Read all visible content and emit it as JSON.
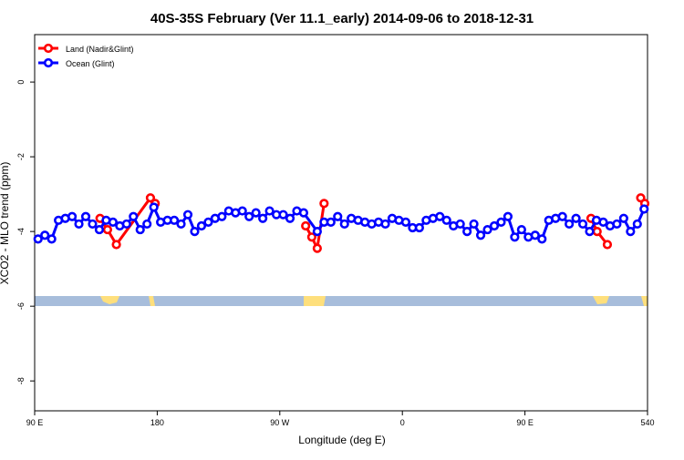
{
  "chart_data": {
    "type": "line",
    "title": "40S-35S February (Ver 11.1_early)   2014-09-06 to 2018-12-31",
    "xlabel": "Longitude (deg E)",
    "ylabel": "XCO2 - MLO trend (ppm)",
    "xlim": [
      90,
      540
    ],
    "ylim": [
      -8.8,
      1.27
    ],
    "xticks": [
      {
        "value": 90,
        "label": "90 E"
      },
      180,
      {
        "value": 270,
        "label": "90 W"
      },
      {
        "value": 360,
        "label": "0"
      },
      {
        "value": 450,
        "label": "90 E"
      },
      540
    ],
    "yticks": [
      -8,
      -6,
      -4,
      -2,
      0
    ],
    "legend": "top-left",
    "series": [
      {
        "name": "Land (Nadir&Glint)",
        "color": "#ff0000",
        "x": [
          138,
          143.5,
          150,
          175,
          178.5,
          230,
          289,
          293.5,
          297.5,
          302.5,
          400,
          498.5,
          503,
          510.5,
          520,
          535,
          538
        ],
        "values": [
          -3.65,
          -3.95,
          -4.35,
          -3.1,
          -3.25,
          null,
          -3.85,
          -4.15,
          -4.45,
          -3.25,
          null,
          -3.65,
          -4.0,
          -4.35,
          null,
          -3.1,
          -3.25
        ]
      },
      {
        "name": "Ocean (Glint)",
        "color": "#0000ff",
        "x": [
          92.5,
          97.5,
          102.5,
          107.5,
          112.5,
          117.5,
          122.5,
          127.5,
          132.5,
          137.5,
          142.5,
          147.5,
          152.5,
          157.5,
          162.5,
          167.5,
          172.5,
          177.5,
          182.5,
          187.5,
          192.5,
          197.5,
          202.5,
          207.5,
          212.5,
          217.5,
          222.5,
          227.5,
          232.5,
          237.5,
          242.5,
          247.5,
          252.5,
          257.5,
          262.5,
          267.5,
          272.5,
          277.5,
          282.5,
          287.5,
          297.5,
          302.5,
          307.5,
          312.5,
          317.5,
          322.5,
          327.5,
          332.5,
          337.5,
          342.5,
          347.5,
          352.5,
          357.5,
          362.5,
          367.5,
          372.5,
          377.5,
          382.5,
          387.5,
          392.5,
          397.5,
          402.5,
          407.5,
          412.5,
          417.5,
          422.5,
          427.5,
          432.5,
          437.5,
          442.5,
          447.5,
          452.5,
          457.5,
          462.5,
          467.5,
          472.5,
          477.5,
          482.5,
          487.5,
          492.5,
          497.5,
          502.5,
          507.5,
          512.5,
          517.5,
          522.5,
          527.5,
          532.5,
          537.5
        ],
        "values": [
          -4.2,
          -4.1,
          -4.2,
          -3.7,
          -3.65,
          -3.6,
          -3.8,
          -3.6,
          -3.8,
          -3.95,
          -3.7,
          -3.75,
          -3.85,
          -3.8,
          -3.6,
          -3.95,
          -3.8,
          -3.35,
          -3.75,
          -3.7,
          -3.7,
          -3.8,
          -3.55,
          -4.0,
          -3.85,
          -3.75,
          -3.65,
          -3.6,
          -3.45,
          -3.5,
          -3.45,
          -3.6,
          -3.5,
          -3.65,
          -3.45,
          -3.55,
          -3.55,
          -3.65,
          -3.45,
          -3.5,
          -4.0,
          -3.75,
          -3.75,
          -3.6,
          -3.8,
          -3.65,
          -3.7,
          -3.75,
          -3.8,
          -3.75,
          -3.8,
          -3.65,
          -3.7,
          -3.75,
          -3.9,
          -3.9,
          -3.7,
          -3.65,
          -3.6,
          -3.7,
          -3.85,
          -3.8,
          -4.0,
          -3.8,
          -4.1,
          -3.95,
          -3.85,
          -3.75,
          -3.6,
          -4.15,
          -3.95,
          -4.15,
          -4.1,
          -4.2,
          -3.7,
          -3.65,
          -3.6,
          -3.8,
          -3.65,
          -3.8,
          -4.0,
          -3.7,
          -3.75,
          -3.85,
          -3.8,
          -3.65,
          -4.0,
          -3.8,
          -3.4
        ]
      }
    ]
  }
}
